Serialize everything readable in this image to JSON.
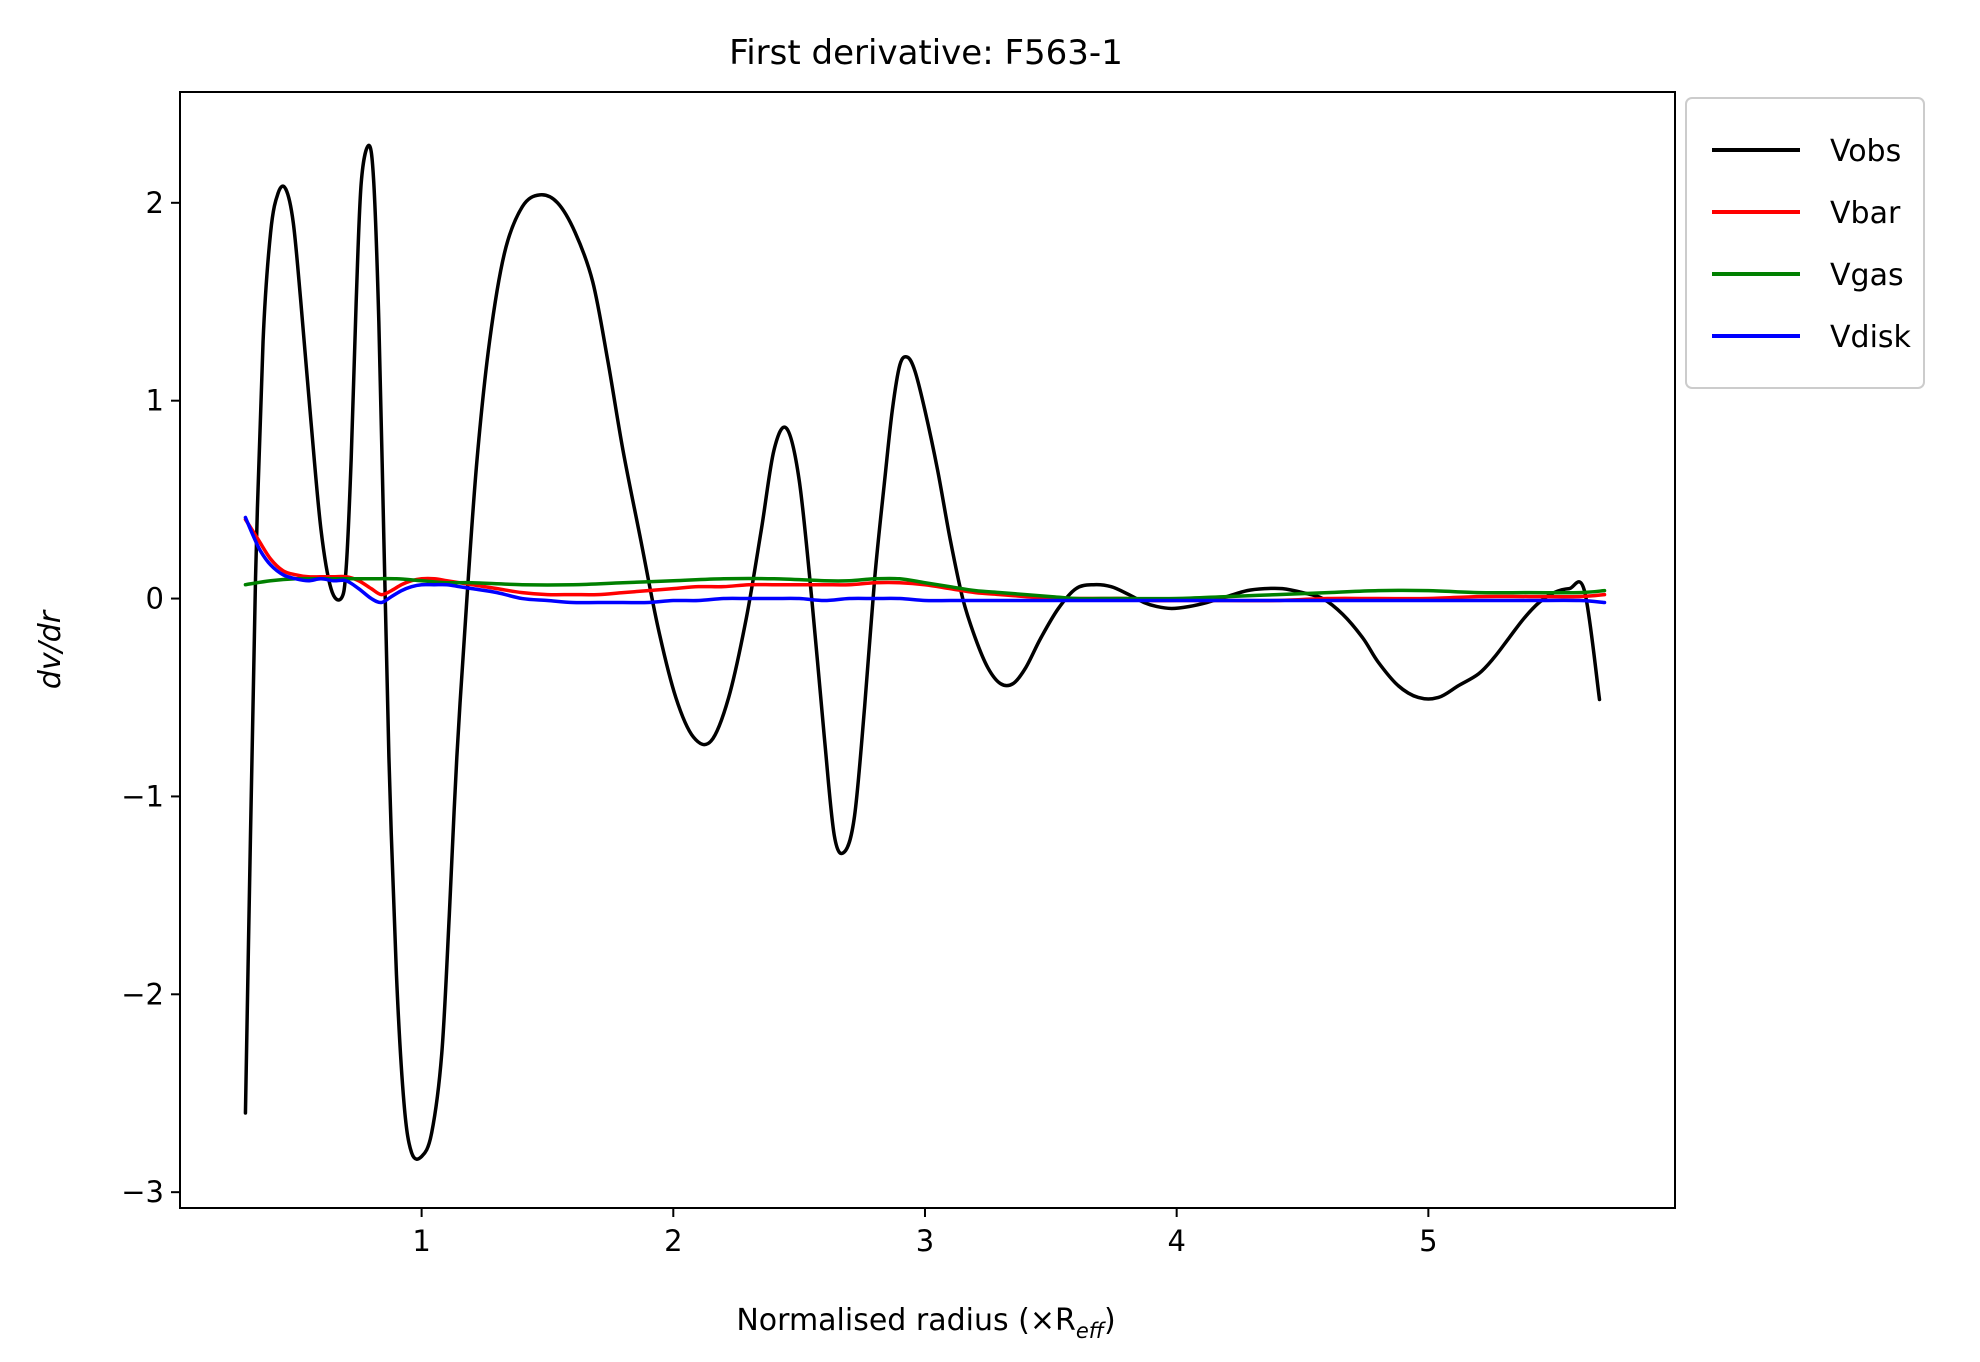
{
  "chart_data": {
    "type": "line",
    "title": "First derivative: F563-1",
    "xlabel": "Normalised radius (×R",
    "xlabel_sub": "eff",
    "xlabel_close": ")",
    "ylabel": "dv/dr",
    "xlim": [
      0.04,
      5.98
    ],
    "ylim": [
      -3.08,
      2.56
    ],
    "xticks": [
      {
        "value": 1,
        "label": "1"
      },
      {
        "value": 2,
        "label": "2"
      },
      {
        "value": 3,
        "label": "3"
      },
      {
        "value": 4,
        "label": "4"
      },
      {
        "value": 5,
        "label": "5"
      }
    ],
    "yticks": [
      {
        "value": -3,
        "label": "−3"
      },
      {
        "value": -2,
        "label": "−2"
      },
      {
        "value": -1,
        "label": "−1"
      },
      {
        "value": 0,
        "label": "0"
      },
      {
        "value": 1,
        "label": "1"
      },
      {
        "value": 2,
        "label": "2"
      }
    ],
    "grid": false,
    "legend_position": "outside-top-right",
    "series": [
      {
        "name": "Vobs",
        "color": "#000000",
        "x": [
          0.3,
          0.32,
          0.34,
          0.37,
          0.4,
          0.43,
          0.46,
          0.49,
          0.52,
          0.56,
          0.6,
          0.64,
          0.68,
          0.7,
          0.72,
          0.74,
          0.76,
          0.79,
          0.81,
          0.83,
          0.85,
          0.87,
          0.9,
          0.93,
          0.96,
          1.0,
          1.04,
          1.08,
          1.11,
          1.14,
          1.18,
          1.22,
          1.27,
          1.33,
          1.4,
          1.47,
          1.54,
          1.61,
          1.68,
          1.74,
          1.8,
          1.87,
          1.94,
          2.01,
          2.08,
          2.15,
          2.22,
          2.29,
          2.35,
          2.4,
          2.45,
          2.5,
          2.55,
          2.6,
          2.64,
          2.68,
          2.72,
          2.76,
          2.8,
          2.84,
          2.87,
          2.9,
          2.93,
          2.96,
          3.0,
          3.05,
          3.1,
          3.15,
          3.2,
          3.25,
          3.3,
          3.35,
          3.4,
          3.46,
          3.53,
          3.6,
          3.67,
          3.74,
          3.81,
          3.87,
          3.92,
          3.98,
          4.05,
          4.12,
          4.2,
          4.28,
          4.35,
          4.42,
          4.5,
          4.58,
          4.66,
          4.74,
          4.8,
          4.88,
          4.96,
          5.04,
          5.12,
          5.2,
          5.26,
          5.32,
          5.38,
          5.44,
          5.5,
          5.56,
          5.62,
          5.68
        ],
        "y": [
          -2.6,
          -1.2,
          0.1,
          1.3,
          1.85,
          2.05,
          2.07,
          1.9,
          1.5,
          0.9,
          0.35,
          0.05,
          0.0,
          0.15,
          0.7,
          1.5,
          2.1,
          2.29,
          2.1,
          1.4,
          0.3,
          -0.8,
          -1.9,
          -2.55,
          -2.8,
          -2.82,
          -2.7,
          -2.3,
          -1.6,
          -0.8,
          0.0,
          0.7,
          1.3,
          1.75,
          1.98,
          2.04,
          2.0,
          1.85,
          1.6,
          1.2,
          0.75,
          0.3,
          -0.15,
          -0.5,
          -0.7,
          -0.72,
          -0.5,
          -0.1,
          0.35,
          0.75,
          0.86,
          0.6,
          0.0,
          -0.7,
          -1.2,
          -1.28,
          -1.1,
          -0.55,
          0.1,
          0.6,
          0.95,
          1.18,
          1.22,
          1.15,
          0.95,
          0.65,
          0.3,
          0.0,
          -0.2,
          -0.35,
          -0.43,
          -0.43,
          -0.35,
          -0.2,
          -0.05,
          0.05,
          0.07,
          0.06,
          0.02,
          -0.02,
          -0.04,
          -0.05,
          -0.04,
          -0.02,
          0.01,
          0.04,
          0.05,
          0.05,
          0.03,
          0.0,
          -0.08,
          -0.2,
          -0.32,
          -0.44,
          -0.5,
          -0.5,
          -0.44,
          -0.38,
          -0.3,
          -0.2,
          -0.1,
          -0.02,
          0.03,
          0.05,
          0.04,
          -0.51
        ]
      },
      {
        "name": "Vbar",
        "color": "#ff0000",
        "x": [
          0.3,
          0.35,
          0.4,
          0.45,
          0.5,
          0.55,
          0.6,
          0.65,
          0.7,
          0.75,
          0.8,
          0.84,
          0.88,
          0.92,
          0.96,
          1.0,
          1.05,
          1.1,
          1.15,
          1.2,
          1.3,
          1.4,
          1.5,
          1.6,
          1.7,
          1.8,
          1.9,
          2.0,
          2.1,
          2.2,
          2.3,
          2.4,
          2.5,
          2.6,
          2.7,
          2.8,
          2.9,
          3.0,
          3.1,
          3.2,
          3.3,
          3.4,
          3.5,
          3.6,
          3.7,
          3.8,
          3.9,
          4.0,
          4.2,
          4.4,
          4.6,
          4.8,
          5.0,
          5.2,
          5.4,
          5.6,
          5.7
        ],
        "y": [
          0.4,
          0.3,
          0.2,
          0.14,
          0.12,
          0.11,
          0.11,
          0.11,
          0.11,
          0.09,
          0.05,
          0.02,
          0.04,
          0.07,
          0.09,
          0.1,
          0.1,
          0.09,
          0.08,
          0.07,
          0.05,
          0.03,
          0.02,
          0.02,
          0.02,
          0.03,
          0.04,
          0.05,
          0.06,
          0.06,
          0.07,
          0.07,
          0.07,
          0.07,
          0.07,
          0.08,
          0.08,
          0.07,
          0.05,
          0.03,
          0.02,
          0.01,
          0.0,
          0.0,
          0.0,
          0.0,
          -0.01,
          -0.01,
          -0.01,
          -0.01,
          0.0,
          0.0,
          0.0,
          0.01,
          0.01,
          0.01,
          0.02
        ]
      },
      {
        "name": "Vgas",
        "color": "#008000",
        "x": [
          0.3,
          0.4,
          0.5,
          0.6,
          0.7,
          0.8,
          0.9,
          1.0,
          1.1,
          1.2,
          1.4,
          1.6,
          1.8,
          2.0,
          2.2,
          2.4,
          2.6,
          2.7,
          2.8,
          2.9,
          3.0,
          3.1,
          3.2,
          3.3,
          3.4,
          3.5,
          3.6,
          3.7,
          3.8,
          4.0,
          4.2,
          4.4,
          4.6,
          4.8,
          5.0,
          5.2,
          5.4,
          5.6,
          5.7
        ],
        "y": [
          0.07,
          0.09,
          0.1,
          0.1,
          0.1,
          0.1,
          0.1,
          0.09,
          0.08,
          0.08,
          0.07,
          0.07,
          0.08,
          0.09,
          0.1,
          0.1,
          0.09,
          0.09,
          0.1,
          0.1,
          0.08,
          0.06,
          0.04,
          0.03,
          0.02,
          0.01,
          0.0,
          0.0,
          0.0,
          0.0,
          0.01,
          0.02,
          0.03,
          0.04,
          0.04,
          0.03,
          0.03,
          0.03,
          0.04
        ]
      },
      {
        "name": "Vdisk",
        "color": "#0000ff",
        "x": [
          0.3,
          0.33,
          0.36,
          0.4,
          0.45,
          0.5,
          0.55,
          0.6,
          0.65,
          0.7,
          0.75,
          0.8,
          0.84,
          0.88,
          0.92,
          0.96,
          1.0,
          1.05,
          1.1,
          1.15,
          1.2,
          1.3,
          1.4,
          1.5,
          1.6,
          1.7,
          1.8,
          1.9,
          2.0,
          2.1,
          2.2,
          2.3,
          2.4,
          2.5,
          2.6,
          2.7,
          2.8,
          2.9,
          3.0,
          3.1,
          3.2,
          3.4,
          3.6,
          3.8,
          4.0,
          4.2,
          4.4,
          4.6,
          4.8,
          5.0,
          5.2,
          5.4,
          5.6,
          5.7
        ],
        "y": [
          0.41,
          0.32,
          0.24,
          0.17,
          0.12,
          0.1,
          0.09,
          0.1,
          0.09,
          0.09,
          0.05,
          0.0,
          -0.02,
          0.01,
          0.04,
          0.06,
          0.07,
          0.07,
          0.07,
          0.06,
          0.05,
          0.03,
          0.0,
          -0.01,
          -0.02,
          -0.02,
          -0.02,
          -0.02,
          -0.01,
          -0.01,
          0.0,
          0.0,
          0.0,
          0.0,
          -0.01,
          0.0,
          0.0,
          0.0,
          -0.01,
          -0.01,
          -0.01,
          -0.01,
          -0.01,
          -0.01,
          -0.01,
          -0.01,
          -0.01,
          -0.01,
          -0.01,
          -0.01,
          -0.01,
          -0.01,
          -0.01,
          -0.02
        ]
      }
    ]
  }
}
